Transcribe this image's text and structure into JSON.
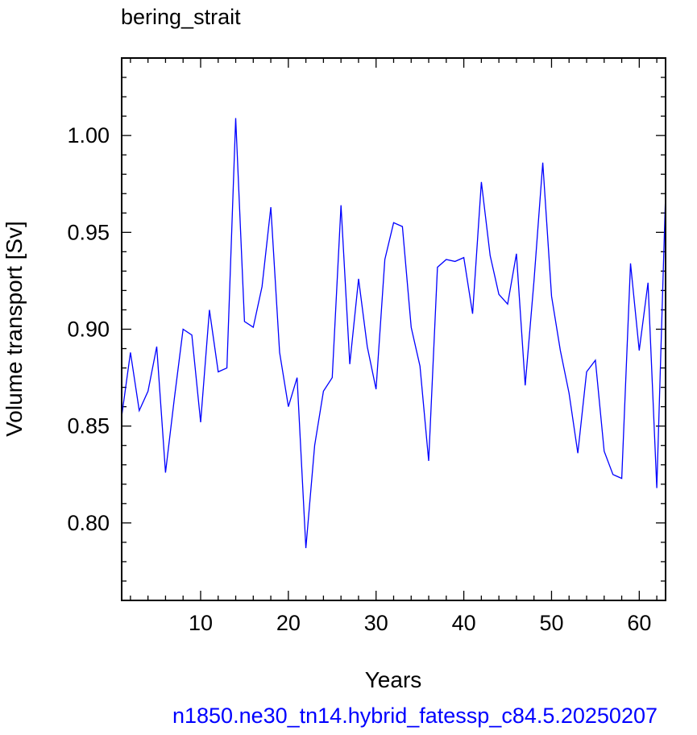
{
  "chart_data": {
    "type": "line",
    "title": "bering_strait",
    "xlabel": "Years",
    "ylabel": "Volume transport [Sv]",
    "footer": "n1850.ne30_tn14.hybrid_fatessp_c84.5.20250207",
    "xlim": [
      1,
      63
    ],
    "ylim": [
      0.76,
      1.04
    ],
    "x_ticks": [
      10,
      20,
      30,
      40,
      50,
      60
    ],
    "x_tick_labels": [
      "10",
      "20",
      "30",
      "40",
      "50",
      "60"
    ],
    "y_ticks": [
      0.8,
      0.85,
      0.9,
      0.95,
      1.0
    ],
    "y_tick_labels": [
      "0.80",
      "0.85",
      "0.90",
      "0.95",
      "1.00"
    ],
    "grid": false,
    "colors": {
      "line": "#0000ff",
      "footer": "#0000ff",
      "axes": "#000000"
    },
    "series": [
      {
        "x": [
          1,
          2,
          3,
          4,
          5,
          6,
          7,
          8,
          9,
          10,
          11,
          12,
          13,
          14,
          15,
          16,
          17,
          18,
          19,
          20,
          21,
          22,
          23,
          24,
          25,
          26,
          27,
          28,
          29,
          30,
          31,
          32,
          33,
          34,
          35,
          36,
          37,
          38,
          39,
          40,
          41,
          42,
          43,
          44,
          45,
          46,
          47,
          48,
          49,
          50,
          51,
          52,
          53,
          54,
          55,
          56,
          57,
          58,
          59,
          60,
          61,
          62,
          63
        ],
        "values": [
          0.855,
          0.888,
          0.858,
          0.868,
          0.891,
          0.826,
          0.864,
          0.9,
          0.897,
          0.852,
          0.91,
          0.878,
          0.88,
          1.009,
          0.904,
          0.901,
          0.922,
          0.963,
          0.888,
          0.86,
          0.875,
          0.787,
          0.84,
          0.868,
          0.875,
          0.964,
          0.882,
          0.926,
          0.891,
          0.869,
          0.936,
          0.955,
          0.953,
          0.901,
          0.881,
          0.832,
          0.932,
          0.936,
          0.935,
          0.937,
          0.908,
          0.976,
          0.938,
          0.918,
          0.913,
          0.939,
          0.871,
          0.925,
          0.986,
          0.917,
          0.889,
          0.867,
          0.836,
          0.878,
          0.884,
          0.837,
          0.825,
          0.823,
          0.934,
          0.889,
          0.924,
          0.818,
          0.97
        ]
      }
    ]
  }
}
